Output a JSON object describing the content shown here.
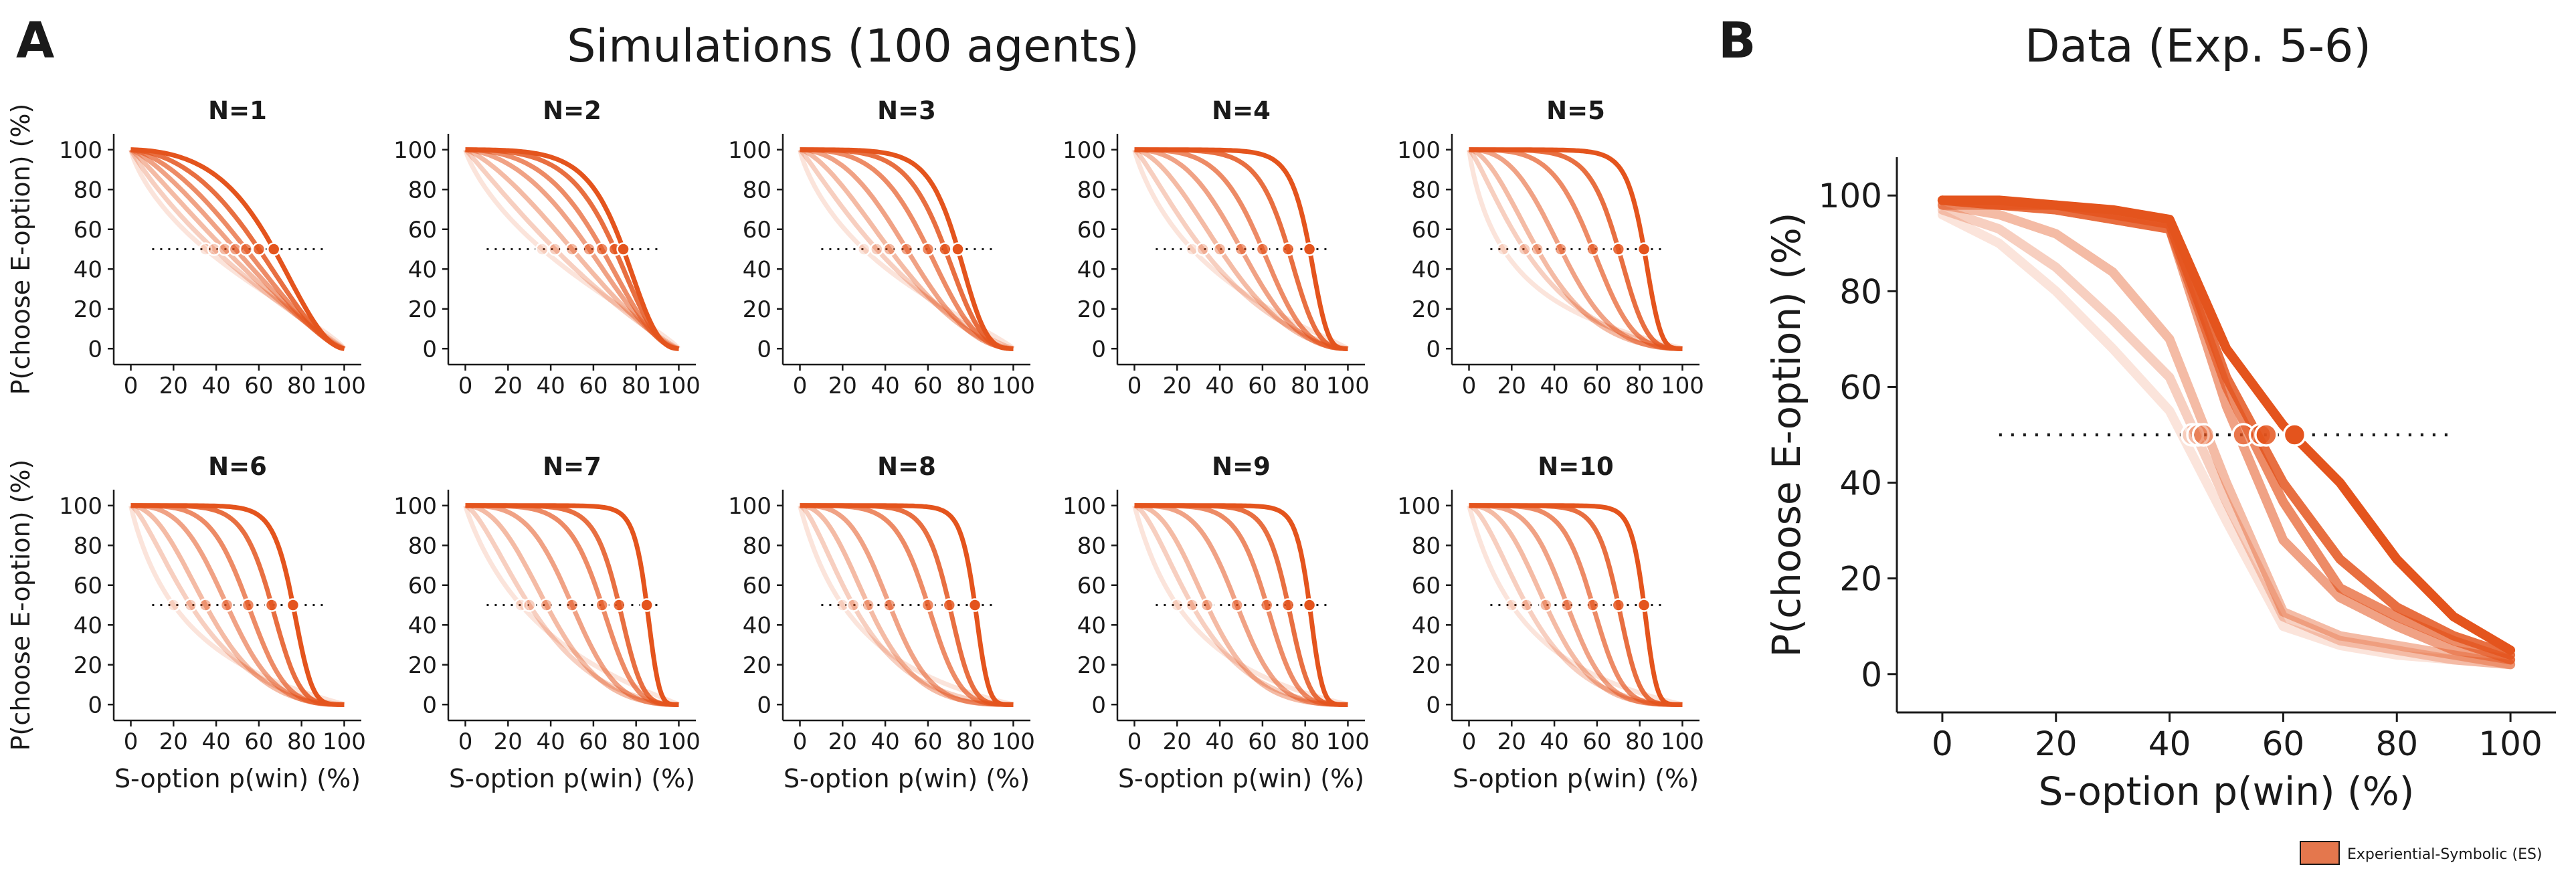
{
  "panel_a": {
    "letter": "A",
    "title": "Simulations (100 agents)",
    "subplot_titles": [
      "N=1",
      "N=2",
      "N=3",
      "N=4",
      "N=5",
      "N=6",
      "N=7",
      "N=8",
      "N=9",
      "N=10"
    ]
  },
  "panel_b": {
    "letter": "B",
    "title": "Data (Exp. 5-6)"
  },
  "colors": {
    "line": "#e4541d",
    "axis": "#1a1a1a"
  },
  "legend": {
    "label": "Experiential-Symbolic (ES)",
    "color": "#e4774d"
  },
  "chart_data": [
    {
      "type": "line",
      "panel": "A",
      "xlabel": "S-option p(win) (%)",
      "ylabel": "P(choose E-option) (%)",
      "xlim": [
        -8,
        108
      ],
      "ylim": [
        -8,
        108
      ],
      "xticks": [
        0,
        20,
        40,
        60,
        80,
        100
      ],
      "yticks": [
        0,
        20,
        40,
        60,
        80,
        100
      ],
      "reference_line": {
        "y": 50,
        "x": [
          10,
          90
        ],
        "style": "dotted"
      },
      "curve_model": "logistic in logit(p) space; each line is one agent level from faint to strong",
      "subplots": [
        {
          "title": "N=1",
          "curve_gamma": [
            0.82,
            0.95,
            1.08,
            1.22,
            1.36,
            1.52,
            1.7
          ],
          "midpoints": [
            35,
            39,
            44,
            49,
            54,
            60,
            67
          ]
        },
        {
          "title": "N=2",
          "curve_gamma": [
            0.85,
            1.05,
            1.25,
            1.5,
            1.75,
            2.0,
            2.25
          ],
          "midpoints": [
            36,
            42,
            50,
            58,
            64,
            70,
            74
          ]
        },
        {
          "title": "N=3",
          "curve_gamma": [
            0.85,
            1.1,
            1.4,
            1.75,
            2.1,
            2.45,
            2.8
          ],
          "midpoints": [
            30,
            36,
            42,
            50,
            60,
            68,
            74
          ]
        },
        {
          "title": "N=4",
          "curve_gamma": [
            0.9,
            1.2,
            1.55,
            1.95,
            2.4,
            2.85,
            3.3
          ],
          "midpoints": [
            27,
            32,
            40,
            50,
            60,
            72,
            82
          ]
        },
        {
          "title": "N=5",
          "curve_gamma": [
            0.9,
            1.25,
            1.65,
            2.1,
            2.6,
            3.1,
            3.6
          ],
          "midpoints": [
            16,
            26,
            32,
            43,
            58,
            70,
            82
          ]
        },
        {
          "title": "N=6",
          "curve_gamma": [
            0.95,
            1.35,
            1.8,
            2.3,
            2.85,
            3.4,
            3.95
          ],
          "midpoints": [
            20,
            28,
            35,
            45,
            55,
            66,
            76
          ]
        },
        {
          "title": "N=7",
          "curve_gamma": [
            0.95,
            1.4,
            1.9,
            2.45,
            3.0,
            3.6,
            4.2
          ],
          "midpoints": [
            26,
            30,
            38,
            50,
            64,
            72,
            85
          ]
        },
        {
          "title": "N=8",
          "curve_gamma": [
            1.0,
            1.45,
            2.0,
            2.6,
            3.2,
            3.85,
            4.5
          ],
          "midpoints": [
            20,
            25,
            32,
            42,
            60,
            70,
            82
          ]
        },
        {
          "title": "N=9",
          "curve_gamma": [
            1.0,
            1.5,
            2.05,
            2.7,
            3.35,
            4.0,
            4.7
          ],
          "midpoints": [
            20,
            27,
            34,
            48,
            62,
            72,
            82
          ]
        },
        {
          "title": "N=10",
          "curve_gamma": [
            1.0,
            1.55,
            2.15,
            2.8,
            3.5,
            4.2,
            4.9
          ],
          "midpoints": [
            20,
            27,
            36,
            46,
            58,
            70,
            82
          ]
        }
      ]
    },
    {
      "type": "line",
      "panel": "B",
      "xlabel": "S-option p(win) (%)",
      "ylabel": "P(choose E-option) (%)",
      "xlim": [
        -8,
        108
      ],
      "ylim": [
        -8,
        108
      ],
      "xticks": [
        0,
        20,
        40,
        60,
        80,
        100
      ],
      "yticks": [
        0,
        20,
        40,
        60,
        80,
        100
      ],
      "x": [
        0,
        10,
        20,
        30,
        40,
        50,
        60,
        70,
        80,
        90,
        100
      ],
      "reference_line": {
        "y": 50,
        "x": [
          10,
          90
        ],
        "style": "dotted"
      },
      "series": [
        {
          "values": [
            96,
            90,
            80,
            68,
            55,
            32,
            10,
            6,
            4,
            3,
            2
          ],
          "midpoint": 44
        },
        {
          "values": [
            97,
            93,
            85,
            74,
            62,
            36,
            12,
            7,
            5,
            3,
            2
          ],
          "midpoint": 45
        },
        {
          "values": [
            98,
            96,
            92,
            84,
            70,
            40,
            13,
            8,
            6,
            4,
            2
          ],
          "midpoint": 46
        },
        {
          "values": [
            98,
            98,
            97,
            95,
            93,
            56,
            28,
            16,
            10,
            5,
            3
          ],
          "midpoint": 53
        },
        {
          "values": [
            99,
            98,
            97,
            95,
            93,
            60,
            36,
            18,
            12,
            7,
            3
          ],
          "midpoint": 56
        },
        {
          "values": [
            99,
            98,
            98,
            96,
            94,
            62,
            40,
            24,
            14,
            8,
            4
          ],
          "midpoint": 57
        },
        {
          "values": [
            99,
            99,
            98,
            97,
            95,
            68,
            52,
            40,
            24,
            12,
            5
          ],
          "midpoint": 62
        }
      ]
    }
  ]
}
